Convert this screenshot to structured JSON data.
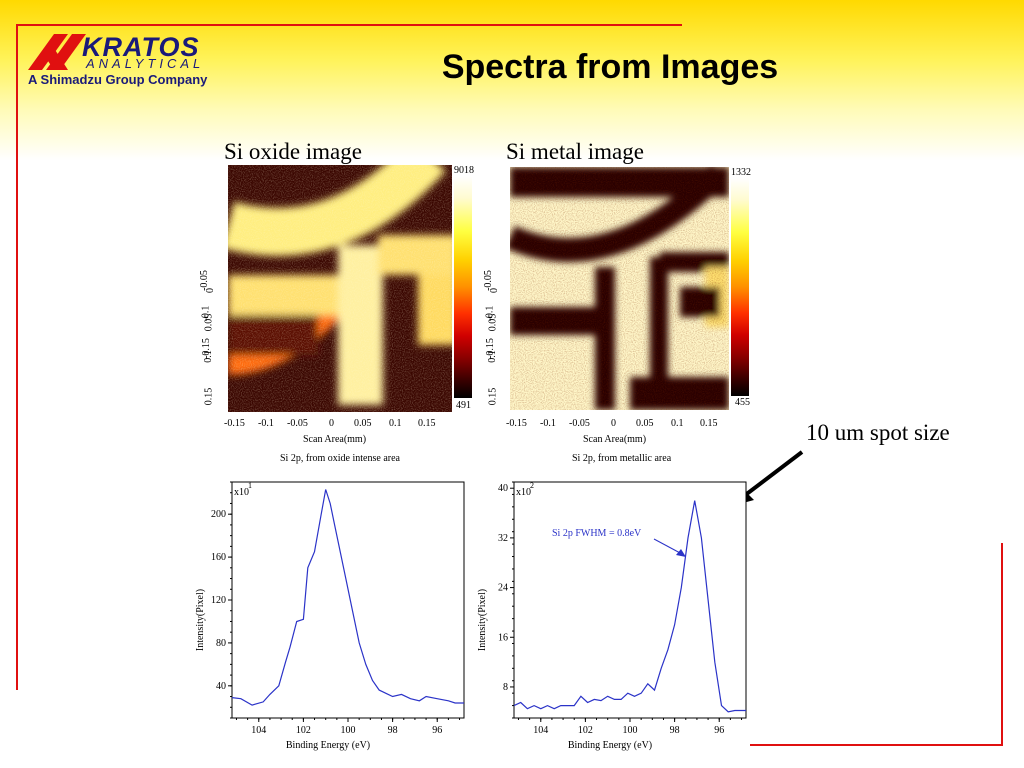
{
  "logo": {
    "brand": "KRATOS",
    "subbrand": "ANALYTICAL",
    "tagline": "A Shimadzu Group Company"
  },
  "title": "Spectra from Images",
  "images": [
    {
      "caption": "Si oxide image",
      "scale_max": "9018",
      "scale_min": "491",
      "x_axis_label": "Scan Area(mm)",
      "x_ticks": [
        "-0.15",
        "-0.1",
        "-0.05",
        "0",
        "0.05",
        "0.1",
        "0.15"
      ],
      "y_ticks": [
        "-0.15",
        "-0.1",
        "-0.05",
        "0",
        "0.05",
        "0.1",
        "0.15"
      ],
      "spectrum_caption": "Si 2p, from oxide intense area"
    },
    {
      "caption": "Si metal image",
      "scale_max": "1332",
      "scale_min": "455",
      "x_axis_label": "Scan Area(mm)",
      "x_ticks": [
        "-0.15",
        "-0.1",
        "-0.05",
        "0",
        "0.05",
        "0.1",
        "0.15"
      ],
      "y_ticks": [
        "-0.15",
        "-0.1",
        "-0.05",
        "0",
        "0.05",
        "0.1",
        "0.15"
      ],
      "spectrum_caption": "Si 2p, from metallic area"
    }
  ],
  "annotation": "10 um spot size",
  "colors": {
    "line": "#2b33c8",
    "frame_red": "#e01010",
    "arrow": "#000000"
  },
  "chart_data": [
    {
      "type": "line",
      "title": "Si 2p, from oxide intense area",
      "xlabel": "Binding Energy (eV)",
      "ylabel": "Intensity(Pixel)",
      "multiplier": "x10",
      "multiplier_exp": "1",
      "xlim": [
        105.2,
        94.8
      ],
      "ylim": [
        10,
        230
      ],
      "x_ticks": [
        104,
        102,
        100,
        98,
        96
      ],
      "y_ticks": [
        40,
        80,
        120,
        160,
        200
      ],
      "series": [
        {
          "x": [
            105.2,
            104.8,
            104.3,
            103.8,
            103.5,
            103.1,
            102.8,
            102.6,
            102.3,
            102.0,
            101.8,
            101.5,
            101.2,
            101.0,
            100.8,
            100.6,
            100.4,
            100.1,
            99.8,
            99.5,
            99.2,
            98.9,
            98.6,
            98.3,
            98.0,
            97.6,
            97.2,
            96.8,
            96.5,
            96.0,
            95.5,
            95.2,
            94.8
          ],
          "y": [
            29,
            28,
            22,
            25,
            32,
            40,
            62,
            76,
            100,
            102,
            150,
            165,
            200,
            223,
            210,
            190,
            170,
            140,
            110,
            80,
            60,
            45,
            36,
            33,
            30,
            32,
            28,
            26,
            30,
            28,
            26,
            24,
            24
          ]
        }
      ]
    },
    {
      "type": "line",
      "title": "Si 2p, from metallic area",
      "xlabel": "Binding Energy (eV)",
      "ylabel": "Intensity(Pixel)",
      "multiplier": "x10",
      "multiplier_exp": "2",
      "annotation": "Si 2p FWHM = 0.8eV",
      "xlim": [
        105.2,
        94.8
      ],
      "ylim": [
        3,
        41
      ],
      "x_ticks": [
        104,
        102,
        100,
        98,
        96
      ],
      "y_ticks": [
        8,
        16,
        24,
        32,
        40
      ],
      "series": [
        {
          "x": [
            105.2,
            104.9,
            104.6,
            104.3,
            104.0,
            103.7,
            103.4,
            103.1,
            102.8,
            102.5,
            102.2,
            101.9,
            101.6,
            101.3,
            101.0,
            100.7,
            100.4,
            100.1,
            99.8,
            99.5,
            99.2,
            98.9,
            98.6,
            98.3,
            98.0,
            97.7,
            97.4,
            97.1,
            96.8,
            96.5,
            96.2,
            95.9,
            95.6,
            95.3,
            94.8
          ],
          "y": [
            5,
            5.5,
            4.5,
            5,
            4.5,
            5,
            4.5,
            5,
            5,
            5,
            6.5,
            5.5,
            6,
            5.8,
            6.5,
            6,
            6,
            7,
            6.5,
            7,
            8.5,
            7.5,
            11,
            14,
            18,
            24,
            32,
            38,
            32,
            22,
            12,
            5,
            4,
            4.2,
            4.2
          ]
        }
      ]
    }
  ]
}
